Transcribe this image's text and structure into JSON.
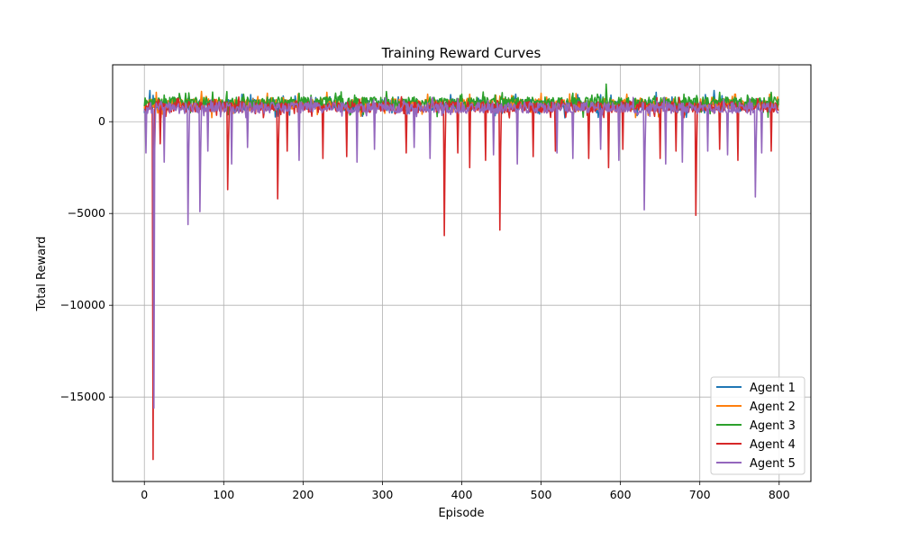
{
  "chart_data": {
    "type": "line",
    "title": "Training Reward Curves",
    "xlabel": "Episode",
    "ylabel": "Total Reward",
    "xlim": [
      -40,
      840
    ],
    "ylim": [
      -19600,
      3100
    ],
    "xticks": [
      0,
      100,
      200,
      300,
      400,
      500,
      600,
      700,
      800
    ],
    "yticks": [
      -15000,
      -10000,
      -5000,
      0
    ],
    "ytick_labels": [
      "−15000",
      "−10000",
      "−5000",
      "0"
    ],
    "grid": true,
    "legend_position": "lower right",
    "episodes": 800,
    "series": [
      {
        "name": "Agent 1",
        "color": "#1f77b4",
        "base": 900,
        "spikes": [
          [
            7,
            1700
          ],
          [
            190,
            1400
          ],
          [
            320,
            1350
          ],
          [
            468,
            1500
          ],
          [
            588,
            1450
          ],
          [
            645,
            1600
          ],
          [
            718,
            1700
          ]
        ]
      },
      {
        "name": "Agent 2",
        "color": "#ff7f0e",
        "base": 950,
        "spikes": [
          [
            15,
            1600
          ],
          [
            72,
            1650
          ],
          [
            155,
            1550
          ],
          [
            230,
            1600
          ],
          [
            305,
            1550
          ],
          [
            410,
            1500
          ],
          [
            500,
            1550
          ],
          [
            608,
            1500
          ],
          [
            745,
            1500
          ],
          [
            788,
            1500
          ]
        ]
      },
      {
        "name": "Agent 3",
        "color": "#2ca02c",
        "base": 1050,
        "spikes": [
          [
            25,
            1450
          ],
          [
            52,
            1550
          ],
          [
            125,
            1500
          ],
          [
            195,
            1550
          ],
          [
            265,
            1450
          ],
          [
            400,
            1500
          ],
          [
            540,
            1550
          ],
          [
            582,
            2050
          ],
          [
            680,
            1500
          ],
          [
            760,
            1450
          ],
          [
            790,
            1600
          ]
        ]
      },
      {
        "name": "Agent 4",
        "color": "#d62728",
        "base": 800,
        "spikes": [
          [
            11,
            -18400
          ],
          [
            20,
            -1200
          ],
          [
            105,
            -3700
          ],
          [
            168,
            -4200
          ],
          [
            180,
            -1600
          ],
          [
            225,
            -2000
          ],
          [
            255,
            -1900
          ],
          [
            330,
            -1700
          ],
          [
            378,
            -6200
          ],
          [
            395,
            -1700
          ],
          [
            410,
            -2500
          ],
          [
            430,
            -2100
          ],
          [
            448,
            -5900
          ],
          [
            490,
            -1900
          ],
          [
            518,
            -1600
          ],
          [
            560,
            -2000
          ],
          [
            585,
            -2500
          ],
          [
            603,
            -1500
          ],
          [
            650,
            -2000
          ],
          [
            670,
            -1600
          ],
          [
            695,
            -5100
          ],
          [
            725,
            -1500
          ],
          [
            748,
            -2100
          ],
          [
            790,
            -1600
          ]
        ]
      },
      {
        "name": "Agent 5",
        "color": "#9467bd",
        "base": 750,
        "spikes": [
          [
            2,
            -1700
          ],
          [
            12,
            -15600
          ],
          [
            25,
            -2200
          ],
          [
            55,
            -5600
          ],
          [
            70,
            -4900
          ],
          [
            80,
            -1600
          ],
          [
            110,
            -2300
          ],
          [
            130,
            -1400
          ],
          [
            195,
            -2100
          ],
          [
            268,
            -2200
          ],
          [
            290,
            -1500
          ],
          [
            340,
            -1400
          ],
          [
            360,
            -2000
          ],
          [
            440,
            -1800
          ],
          [
            470,
            -2300
          ],
          [
            520,
            -1700
          ],
          [
            540,
            -2000
          ],
          [
            575,
            -1500
          ],
          [
            598,
            -2100
          ],
          [
            630,
            -4800
          ],
          [
            657,
            -2300
          ],
          [
            678,
            -2200
          ],
          [
            710,
            -1600
          ],
          [
            735,
            -1800
          ],
          [
            770,
            -4100
          ],
          [
            778,
            -1700
          ]
        ]
      }
    ]
  }
}
